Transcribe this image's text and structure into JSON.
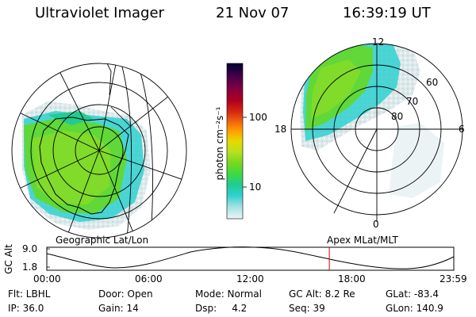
{
  "header": {
    "instrument": "Ultraviolet Imager",
    "date": "21 Nov 07",
    "time": "16:39:19 UT"
  },
  "left_panel": {
    "caption": "Geographic Lat/Lon"
  },
  "right_panel": {
    "caption": "Apex MLat/MLT",
    "mlt_labels": [
      "12",
      "18",
      "6",
      "0"
    ],
    "lat_labels": [
      "60",
      "70",
      "80"
    ]
  },
  "colorbar": {
    "unit_label": "photon cm⁻²s⁻¹",
    "ticks": [
      "100",
      "10"
    ],
    "colors": [
      "#000033",
      "#44004a",
      "#800040",
      "#b00020",
      "#d42810",
      "#ee6010",
      "#ff9a00",
      "#e8d800",
      "#b8e020",
      "#78d820",
      "#40d840",
      "#20cc90",
      "#30d0d0",
      "#a0e0e0",
      "#e8f0f0"
    ]
  },
  "altitude_plot": {
    "axis_label": "GC Alt",
    "y_ticks": [
      "9.0",
      "1.8"
    ],
    "x_ticks": [
      "00:00",
      "06:00",
      "12:00",
      "18:00",
      "23:59"
    ],
    "current_time_hours": 16.65,
    "marker_color": "#cc0000"
  },
  "info": {
    "row1": [
      "Flt: LBHL",
      "Door: Open",
      "Mode: Normal",
      "GC Alt: 8.2 Re",
      "GLat: -83.4"
    ],
    "row2": [
      "IP: 36.0",
      "Gain: 14",
      "Dsp:     4.2",
      "Seq: 39",
      "GLon: 140.9"
    ]
  }
}
